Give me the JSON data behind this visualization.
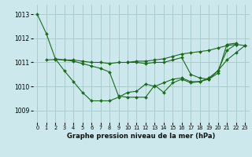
{
  "background_color": "#cce8ec",
  "grid_color": "#aacccc",
  "line_color": "#1a6b1a",
  "marker_color": "#1a6b1a",
  "xlabel": "Graphe pression niveau de la mer (hPa)",
  "xlim": [
    -0.5,
    23.5
  ],
  "ylim": [
    1008.5,
    1013.4
  ],
  "yticks": [
    1009,
    1010,
    1011,
    1012,
    1013
  ],
  "xticks": [
    0,
    1,
    2,
    3,
    4,
    5,
    6,
    7,
    8,
    9,
    10,
    11,
    12,
    13,
    14,
    15,
    16,
    17,
    18,
    19,
    20,
    21,
    22,
    23
  ],
  "series": [
    [
      1013.0,
      1012.2,
      1011.15,
      1011.1,
      1011.05,
      1010.95,
      1010.85,
      1010.75,
      1010.6,
      1009.6,
      1009.55,
      1009.55,
      1009.55,
      1010.05,
      1009.75,
      1010.15,
      1010.3,
      1010.15,
      1010.2,
      1010.35,
      1010.65,
      1011.5,
      1011.75,
      1011.7
    ],
    [
      null,
      null,
      1011.15,
      1010.65,
      1010.2,
      1009.75,
      1009.4,
      1009.4,
      1009.4,
      1009.55,
      1009.75,
      1009.8,
      1010.1,
      1010.0,
      1010.15,
      1010.3,
      1010.35,
      1010.2,
      1010.2,
      1010.3,
      1010.65,
      1011.1,
      1011.4,
      1011.7
    ],
    [
      null,
      1011.1,
      1011.12,
      1011.1,
      1011.1,
      1011.05,
      1011.0,
      1011.0,
      1010.95,
      1011.0,
      1011.0,
      1011.05,
      1011.05,
      1011.1,
      1011.15,
      1011.25,
      1011.35,
      1011.4,
      1011.45,
      1011.5,
      1011.6,
      1011.7,
      1011.75,
      null
    ],
    [
      null,
      null,
      null,
      null,
      null,
      null,
      null,
      null,
      null,
      null,
      1011.0,
      1011.0,
      1010.95,
      1011.0,
      1011.0,
      1011.1,
      1011.2,
      1010.5,
      1010.35,
      1010.3,
      1010.55,
      1011.75,
      1011.8,
      null
    ]
  ]
}
